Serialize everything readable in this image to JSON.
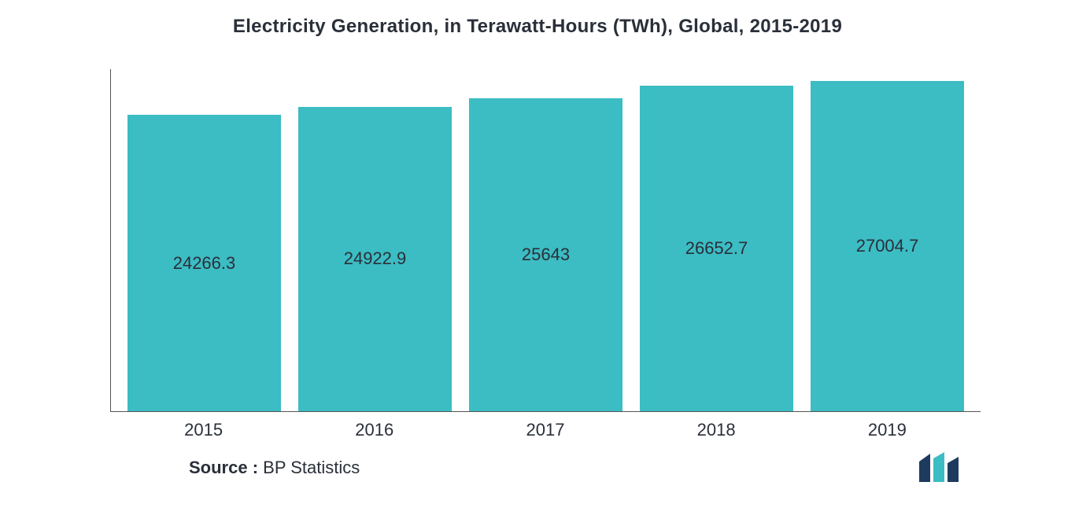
{
  "chart": {
    "type": "bar",
    "title": "Electricity Generation, in Terawatt-Hours (TWh), Global, 2015-2019",
    "title_fontsize": 24,
    "title_color": "#2a2f39",
    "background_color": "#ffffff",
    "axis_color": "#555555",
    "categories": [
      "2015",
      "2016",
      "2017",
      "2018",
      "2019"
    ],
    "values": [
      24266.3,
      24922.9,
      25643,
      26652.7,
      27004.7
    ],
    "value_labels": [
      "24266.3",
      "24922.9",
      "25643",
      "26652.7",
      "27004.7"
    ],
    "bar_color": "#3cbcc3",
    "value_label_color": "#2a2f39",
    "value_label_fontsize": 22,
    "x_label_fontsize": 22,
    "x_label_color": "#2a2f39",
    "y_max": 28000,
    "bar_width_pct": 100
  },
  "source": {
    "label": "Source :",
    "value": " BP Statistics",
    "fontsize": 22,
    "color": "#2a2f39"
  },
  "logo": {
    "bar1_color": "#1e3a5f",
    "bar2_color": "#3cbcc3",
    "bar3_color": "#1e3a5f"
  }
}
